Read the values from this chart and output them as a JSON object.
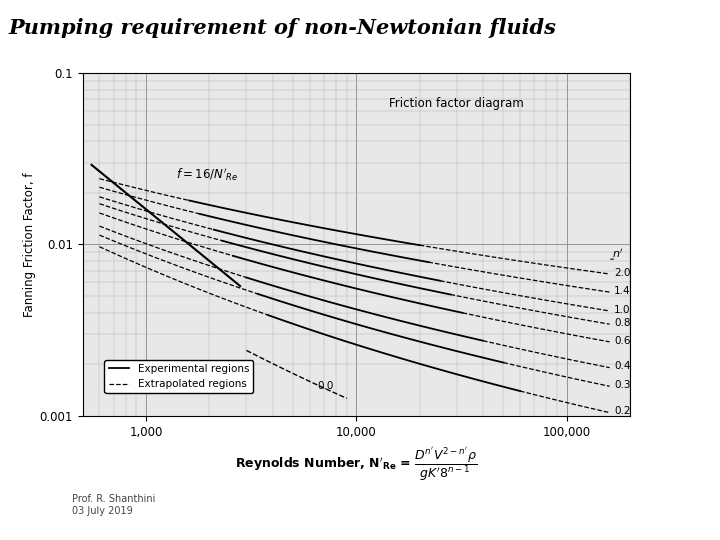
{
  "title": "Pumping requirement of non-Newtonian fluids",
  "title_bg": "#FFFF00",
  "title_color": "#000000",
  "ylabel": "Fanning Friction Factor, f",
  "xlim": [
    500,
    200000
  ],
  "ylim": [
    0.001,
    0.1
  ],
  "n_prime_values": [
    2.0,
    1.4,
    1.0,
    0.8,
    0.6,
    0.4,
    0.3,
    0.2,
    0.0
  ],
  "annotation_friction": "Friction factor diagram",
  "legend_exp": "Experimental regions",
  "legend_ext": "Extrapolated regions",
  "prof_text": "Prof. R. Shanthini\n03 July 2019",
  "background_color": "#ffffff",
  "plot_bg": "#e8e8e8",
  "fig_width": 7.2,
  "fig_height": 5.4,
  "dpi": 100
}
